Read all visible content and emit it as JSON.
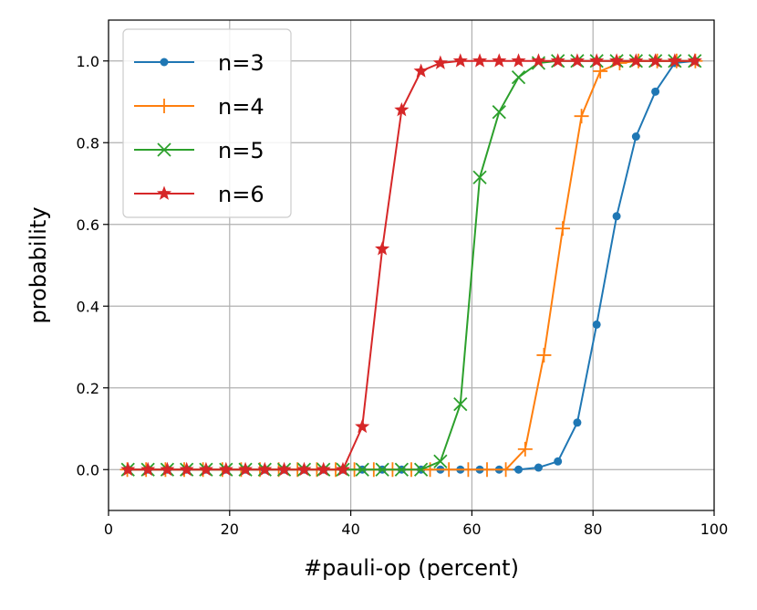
{
  "chart_data": {
    "type": "line",
    "title": "",
    "xlabel": "#pauli-op (percent)",
    "ylabel": "probability",
    "xlim": [
      0,
      100
    ],
    "ylim": [
      -0.1,
      1.1
    ],
    "xticks": [
      0,
      20,
      40,
      60,
      80,
      100
    ],
    "yticks": [
      0.0,
      0.2,
      0.4,
      0.6,
      0.8,
      1.0
    ],
    "xtick_labels": [
      "0",
      "20",
      "40",
      "60",
      "80",
      "100"
    ],
    "ytick_labels": [
      "0.0",
      "0.2",
      "0.4",
      "0.6",
      "0.8",
      "1.0"
    ],
    "grid": true,
    "legend_position": "top-left",
    "series": [
      {
        "name": "n=3",
        "color": "#1f77b4",
        "marker": "circle",
        "x": [
          3.2,
          6.5,
          9.7,
          12.9,
          16.1,
          19.4,
          22.6,
          25.8,
          29.0,
          32.3,
          35.5,
          38.7,
          41.9,
          45.2,
          48.4,
          51.6,
          54.8,
          58.1,
          61.3,
          64.5,
          67.7,
          71.0,
          74.2,
          77.4,
          80.6,
          83.9,
          87.1,
          90.3,
          93.5,
          96.8
        ],
        "y": [
          0,
          0,
          0,
          0,
          0,
          0,
          0,
          0,
          0,
          0,
          0,
          0,
          0,
          0,
          0,
          0,
          0,
          0,
          0,
          0,
          0.0,
          0.005,
          0.02,
          0.115,
          0.355,
          0.62,
          0.815,
          0.925,
          0.995,
          1.0
        ]
      },
      {
        "name": "n=4",
        "color": "#ff7f0e",
        "marker": "plus",
        "x": [
          3.1,
          6.2,
          9.4,
          12.5,
          15.6,
          18.8,
          21.9,
          25.0,
          28.1,
          31.2,
          34.4,
          37.5,
          40.6,
          43.8,
          46.9,
          50.0,
          53.1,
          56.2,
          59.4,
          62.5,
          65.6,
          68.8,
          71.9,
          75.0,
          78.1,
          81.2,
          84.4,
          87.5,
          90.6,
          93.8,
          96.9
        ],
        "y": [
          0,
          0,
          0,
          0,
          0,
          0,
          0,
          0,
          0,
          0,
          0,
          0,
          0,
          0,
          0,
          0,
          0,
          0,
          0,
          0,
          0,
          0.05,
          0.28,
          0.59,
          0.865,
          0.975,
          0.995,
          1.0,
          1.0,
          1.0,
          1.0
        ]
      },
      {
        "name": "n=5",
        "color": "#2ca02c",
        "marker": "x",
        "x": [
          3.2,
          6.5,
          9.7,
          12.9,
          16.1,
          19.4,
          22.6,
          25.8,
          29.0,
          32.3,
          35.5,
          38.7,
          41.9,
          45.2,
          48.4,
          51.6,
          54.8,
          58.1,
          61.3,
          64.5,
          67.7,
          71.0,
          74.2,
          77.4,
          80.6,
          83.9,
          87.1,
          90.3,
          93.5,
          96.8
        ],
        "y": [
          0,
          0,
          0,
          0,
          0,
          0,
          0,
          0,
          0,
          0,
          0,
          0,
          0,
          0,
          0,
          0,
          0.02,
          0.16,
          0.715,
          0.875,
          0.96,
          0.995,
          1.0,
          1.0,
          1.0,
          1.0,
          1.0,
          1.0,
          1.0,
          1.0
        ]
      },
      {
        "name": "n=6",
        "color": "#d62728",
        "marker": "star",
        "x": [
          3.2,
          6.5,
          9.7,
          12.9,
          16.1,
          19.4,
          22.6,
          25.8,
          29.0,
          32.3,
          35.5,
          38.7,
          41.9,
          45.2,
          48.4,
          51.6,
          54.8,
          58.1,
          61.3,
          64.5,
          67.7,
          71.0,
          74.2,
          77.4,
          80.6,
          83.9,
          87.1,
          90.3,
          93.5,
          96.8
        ],
        "y": [
          0,
          0,
          0,
          0,
          0,
          0,
          0,
          0,
          0,
          0,
          0,
          0,
          0.105,
          0.54,
          0.88,
          0.975,
          0.995,
          1.0,
          1.0,
          1.0,
          1.0,
          1.0,
          1.0,
          1.0,
          1.0,
          1.0,
          1.0,
          1.0,
          1.0,
          1.0
        ]
      }
    ]
  }
}
